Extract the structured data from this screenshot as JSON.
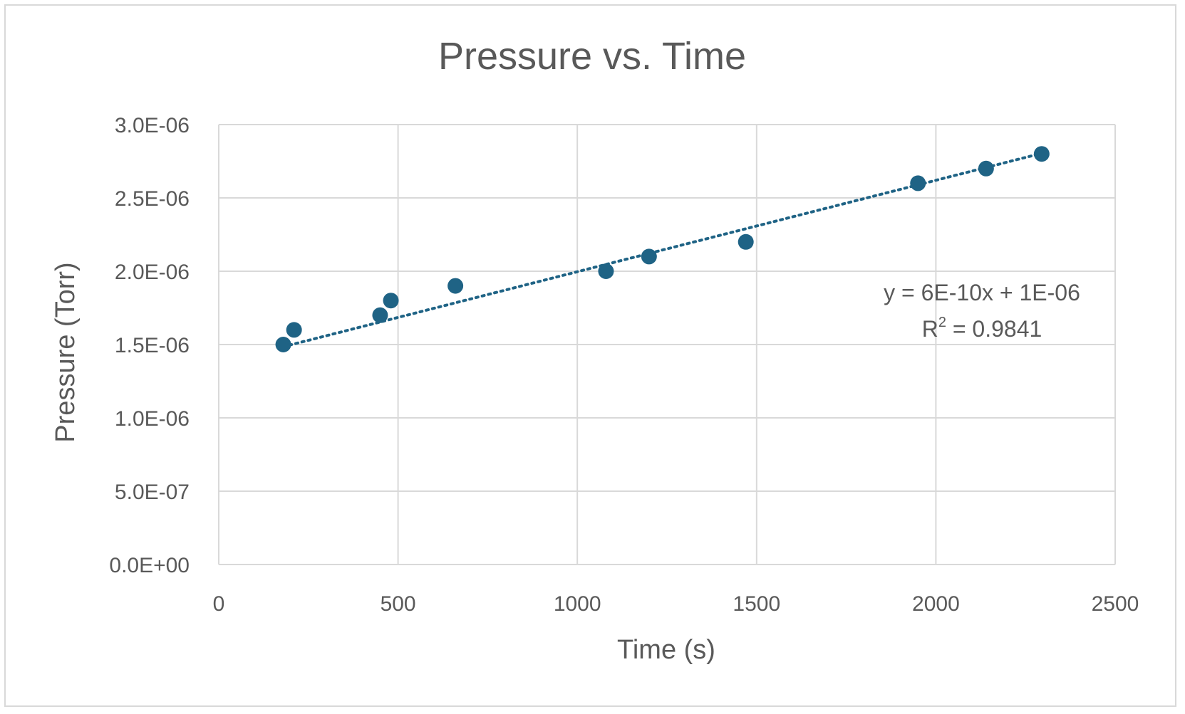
{
  "chart_data": {
    "type": "scatter",
    "title": "Pressure vs. Time",
    "xlabel": "Time (s)",
    "ylabel": "Pressure (Torr)",
    "xlim": [
      0,
      2500
    ],
    "ylim": [
      0,
      3e-06
    ],
    "x_ticks": [
      0,
      500,
      1000,
      1500,
      2000,
      2500
    ],
    "x_tick_labels": [
      "0",
      "500",
      "1000",
      "1500",
      "2000",
      "2500"
    ],
    "y_ticks": [
      0,
      5e-07,
      1e-06,
      1.5e-06,
      2e-06,
      2.5e-06,
      3e-06
    ],
    "y_tick_labels": [
      "0.0E+00",
      "5.0E-07",
      "1.0E-06",
      "1.5E-06",
      "2.0E-06",
      "2.5E-06",
      "3.0E-06"
    ],
    "grid": true,
    "marker_color": "#1f6385",
    "series": [
      {
        "points": [
          {
            "x": 180,
            "y": 1.5e-06
          },
          {
            "x": 210,
            "y": 1.6e-06
          },
          {
            "x": 450,
            "y": 1.7e-06
          },
          {
            "x": 480,
            "y": 1.8e-06
          },
          {
            "x": 660,
            "y": 1.9e-06
          },
          {
            "x": 1080,
            "y": 2e-06
          },
          {
            "x": 1200,
            "y": 2.1e-06
          },
          {
            "x": 1470,
            "y": 2.2e-06
          },
          {
            "x": 1950,
            "y": 2.6e-06
          },
          {
            "x": 2140,
            "y": 2.7e-06
          },
          {
            "x": 2295,
            "y": 2.8e-06
          }
        ]
      }
    ],
    "trendline": {
      "type": "linear",
      "style": "dotted",
      "x_range": [
        180,
        2295
      ],
      "slope": 6.236e-10,
      "intercept": 1.373e-06,
      "equation_text": "y = 6E-10x + 1E-06",
      "r2_prefix": "R",
      "r2_superscript": "2",
      "r2_value_text": " = 0.9841"
    }
  }
}
